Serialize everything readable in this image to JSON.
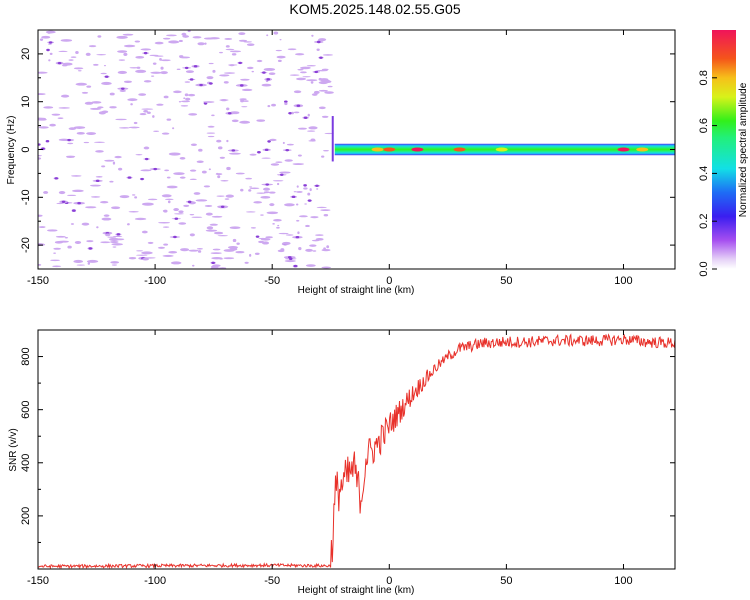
{
  "title": "KOM5.2025.148.02.55.G05",
  "colors": {
    "snr_line": "#e8312a",
    "noise_blob": "#cda8f0",
    "noise_core": "#8a3fd6",
    "axis": "#000000",
    "background": "#ffffff"
  },
  "chart_data": [
    {
      "type": "heatmap",
      "xlabel": "Height of straight line (km)",
      "ylabel": "Frequency (Hz)",
      "xlim": [
        -150,
        122
      ],
      "ylim": [
        -25,
        25
      ],
      "xticks": [
        -150,
        -100,
        -50,
        0,
        50,
        100
      ],
      "yticks": [
        -20,
        -10,
        0,
        10,
        20
      ],
      "colorbar": {
        "label": "Normalized spectral amplitude",
        "range": [
          0,
          1
        ],
        "ticks": [
          0.0,
          0.2,
          0.4,
          0.6,
          0.8
        ],
        "tick_labels": [
          "0.0",
          "0.2",
          "0.4",
          "0.6",
          "0.8"
        ],
        "colormap": "rainbow (violet to magenta-red)"
      },
      "noise_region": {
        "x_range": [
          -150,
          -25
        ],
        "freq_range": [
          -25,
          25
        ],
        "amplitude": "low (0.05-0.25)"
      },
      "signal_band": {
        "x_start": -25,
        "x_end": 122,
        "center_freq": 0,
        "half_width_hz": 1.2,
        "amplitude": "0.4-0.95"
      }
    },
    {
      "type": "line",
      "xlabel": "Height of straight line (km)",
      "ylabel": "SNR (v/v)",
      "xlim": [
        -150,
        122
      ],
      "ylim": [
        0,
        900
      ],
      "xticks": [
        -150,
        -100,
        -50,
        0,
        50,
        100
      ],
      "yticks": [
        200,
        400,
        600,
        800
      ],
      "series": [
        {
          "x": [
            -150,
            -100,
            -50,
            -25,
            -23,
            -20,
            -15,
            -12,
            -10,
            -5,
            0,
            5,
            10,
            15,
            20,
            25,
            30,
            40,
            50,
            60,
            70,
            80,
            90,
            100,
            110,
            122
          ],
          "y": [
            10,
            12,
            14,
            12,
            280,
            320,
            380,
            260,
            420,
            470,
            540,
            600,
            660,
            710,
            760,
            800,
            830,
            850,
            855,
            855,
            860,
            860,
            860,
            865,
            855,
            850
          ]
        }
      ]
    }
  ]
}
